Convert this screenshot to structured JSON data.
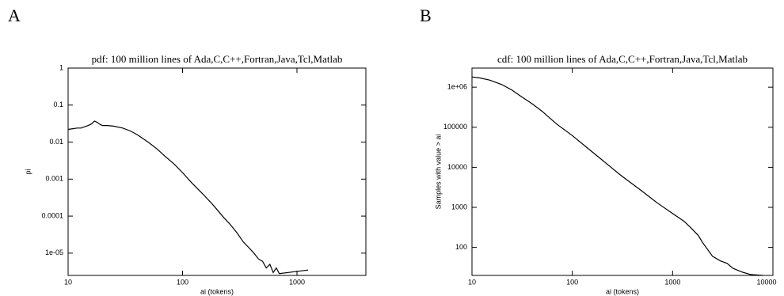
{
  "chart_data": [
    {
      "type": "line",
      "label": "A",
      "title": "pdf: 100 million lines of Ada,C,C++,Fortran,Java,Tcl,Matlab",
      "x_label": "ai (tokens)",
      "y_label": "pi",
      "log_x": true,
      "log_y": true,
      "color": "#000000",
      "xlim": [
        10,
        4000
      ],
      "xticks": [
        10,
        100,
        1000
      ],
      "ylim": [
        2.5e-06,
        1
      ],
      "yticks": [
        {
          "value": 1e-05,
          "label": "1e-05"
        },
        0.0001,
        0.001,
        0.01,
        0.1,
        1
      ],
      "x": [
        10,
        11,
        12,
        13,
        14,
        15,
        16,
        17,
        18,
        19,
        20,
        22,
        25,
        30,
        35,
        40,
        50,
        60,
        70,
        85,
        100,
        120,
        150,
        180,
        200,
        230,
        260,
        300,
        340,
        380,
        420,
        460,
        500,
        540,
        580,
        620,
        660,
        700,
        1250
      ],
      "values": [
        0.022,
        0.023,
        0.024,
        0.024,
        0.026,
        0.028,
        0.031,
        0.037,
        0.034,
        0.03,
        0.028,
        0.028,
        0.027,
        0.024,
        0.02,
        0.016,
        0.01,
        0.0065,
        0.0042,
        0.0025,
        0.0015,
        0.0008,
        0.0004,
        0.00022,
        0.00015,
        9e-05,
        6e-05,
        3.5e-05,
        2e-05,
        1.4e-05,
        1e-05,
        7e-06,
        6e-06,
        4e-06,
        5e-06,
        3e-06,
        4e-06,
        2.8e-06,
        3.5e-06
      ]
    },
    {
      "type": "line",
      "label": "B",
      "title": "cdf: 100 million lines of Ada,C,C++,Fortran,Java,Tcl,Matlab",
      "x_label": "ai (tokens)",
      "y_label": "Samples with value > ai",
      "log_x": true,
      "log_y": true,
      "color": "#000000",
      "xlim": [
        10,
        10000
      ],
      "xticks": [
        10,
        100,
        1000,
        10000
      ],
      "ylim": [
        20,
        3000000
      ],
      "yticks": [
        100,
        1000,
        10000,
        100000,
        {
          "value": 1000000,
          "label": "1e+06"
        }
      ],
      "x": [
        10,
        12,
        15,
        20,
        25,
        30,
        40,
        50,
        70,
        100,
        150,
        200,
        300,
        500,
        700,
        1000,
        1300,
        1500,
        1800,
        2000,
        2300,
        2500,
        3000,
        3500,
        4000,
        5000,
        6000,
        8000
      ],
      "values": [
        1800000,
        1700000,
        1500000,
        1150000,
        850000,
        620000,
        380000,
        250000,
        120000,
        62000,
        27000,
        15000,
        6500,
        2500,
        1300,
        700,
        450,
        320,
        200,
        130,
        80,
        60,
        46,
        40,
        30,
        24,
        21,
        20
      ]
    }
  ]
}
